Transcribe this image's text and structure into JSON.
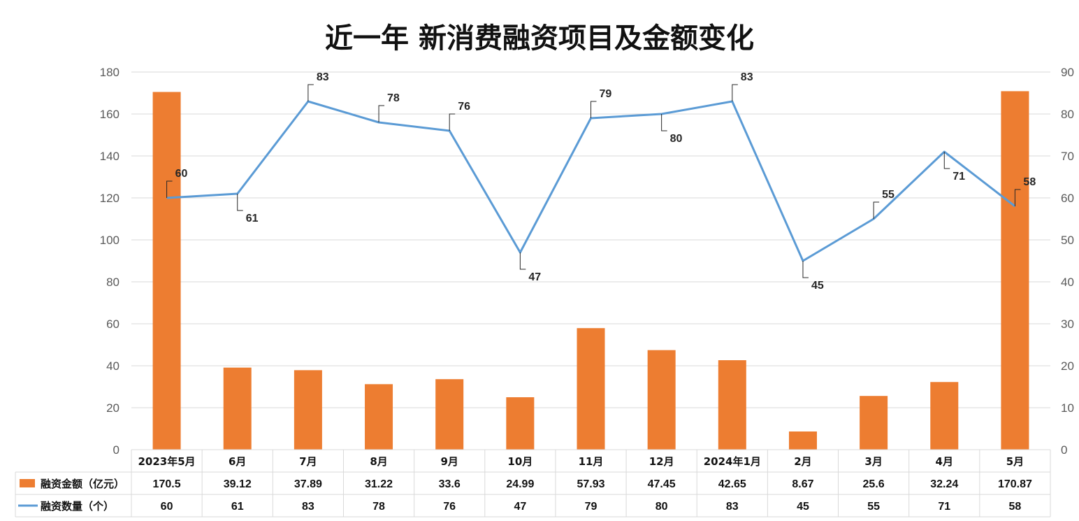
{
  "chart_data": {
    "type": "bar",
    "title": "近一年 新消费融资项目及金额变化",
    "categories": [
      "2023年5月",
      "6月",
      "7月",
      "8月",
      "9月",
      "10月",
      "11月",
      "12月",
      "2024年1月",
      "2月",
      "3月",
      "4月",
      "5月"
    ],
    "series": [
      {
        "name": "融资金额（亿元）",
        "type": "bar",
        "axis": "left",
        "color": "#ED7D31",
        "values": [
          170.5,
          39.12,
          37.89,
          31.22,
          33.6,
          24.99,
          57.93,
          47.45,
          42.65,
          8.67,
          25.6,
          32.24,
          170.87
        ],
        "table_labels": [
          "170.5",
          "39.12",
          "37.89",
          "31.22",
          "33.6",
          "24.99",
          "57.93",
          "47.45",
          "42.65",
          "8.67",
          "25.6",
          "32.24",
          "170.87"
        ]
      },
      {
        "name": "融资数量（个）",
        "type": "line",
        "axis": "right",
        "color": "#5B9BD5",
        "values": [
          60,
          61,
          83,
          78,
          76,
          47,
          79,
          80,
          83,
          45,
          55,
          71,
          58
        ],
        "table_labels": [
          "60",
          "61",
          "83",
          "78",
          "76",
          "47",
          "79",
          "80",
          "83",
          "45",
          "55",
          "71",
          "58"
        ]
      }
    ],
    "y_left": {
      "min": 0,
      "max": 180,
      "ticks": [
        "0",
        "20",
        "40",
        "60",
        "80",
        "100",
        "120",
        "140",
        "160",
        "180"
      ]
    },
    "y_right": {
      "min": 0,
      "max": 90,
      "ticks": [
        "0",
        "10",
        "20",
        "30",
        "40",
        "50",
        "60",
        "70",
        "80",
        "90"
      ]
    },
    "grid": true,
    "legend": "data-table-below",
    "line_label_side": [
      "above",
      "below",
      "above",
      "above",
      "above",
      "below",
      "above",
      "below",
      "above",
      "below",
      "above",
      "below",
      "above"
    ]
  },
  "colors": {
    "bar": "#ED7D31",
    "line": "#5B9BD5",
    "grid": "#D9D9D9",
    "table_border": "#D9D9D9"
  }
}
